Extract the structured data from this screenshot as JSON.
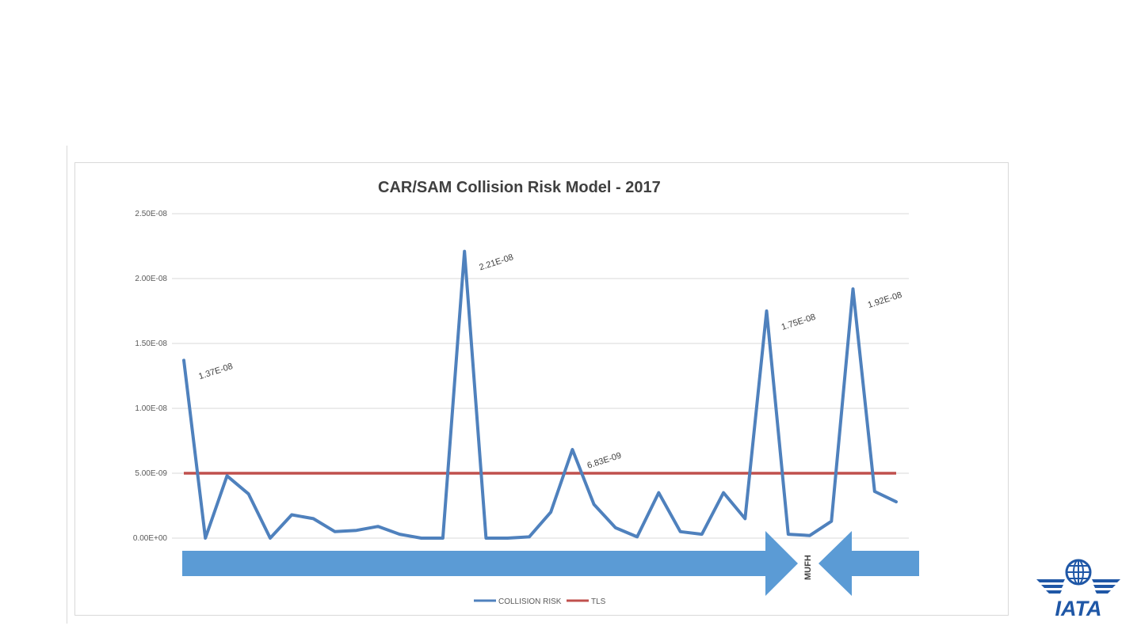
{
  "chart_data": {
    "type": "line",
    "title": "CAR/SAM Collision Risk Model - 2017",
    "xlabel": "",
    "ylabel": "",
    "ylim": [
      0,
      2.5e-08
    ],
    "yticks": [
      "0.00E+00",
      "5.00E-09",
      "1.00E-08",
      "1.50E-08",
      "2.00E-08",
      "2.50E-08"
    ],
    "ytick_values": [
      0,
      5e-09,
      1e-08,
      1.5e-08,
      2e-08,
      2.5e-08
    ],
    "grid": true,
    "legend_position": "bottom",
    "visible_x_labels": [
      "MUFH"
    ],
    "series": [
      {
        "name": "COLLISION RISK",
        "color": "#4f81bd",
        "values": [
          1.37e-08,
          0,
          4.8e-09,
          3.4e-09,
          0,
          1.8e-09,
          1.5e-09,
          5e-10,
          6e-10,
          9e-10,
          3e-10,
          0,
          0,
          2.21e-08,
          0,
          0,
          1e-10,
          2e-09,
          6.83e-09,
          2.6e-09,
          8e-10,
          1e-10,
          3.5e-09,
          5e-10,
          3e-10,
          3.5e-09,
          1.5e-09,
          1.75e-08,
          3e-10,
          2e-10,
          1.3e-09,
          1.92e-08,
          3.6e-09,
          2.8e-09
        ]
      },
      {
        "name": "TLS",
        "color": "#c0504d",
        "values": [
          5e-09,
          5e-09
        ]
      }
    ],
    "data_labels": [
      {
        "index": 0,
        "text": "1.37E-08"
      },
      {
        "index": 13,
        "text": "2.21E-08"
      },
      {
        "index": 18,
        "text": "6.83E-09"
      },
      {
        "index": 27,
        "text": "1.75E-08"
      },
      {
        "index": 31,
        "text": "1.92E-08"
      }
    ]
  },
  "overlay": {
    "arrow_color": "#5b9bd5"
  },
  "logo": {
    "text": "IATA",
    "color": "#1f57a6"
  }
}
